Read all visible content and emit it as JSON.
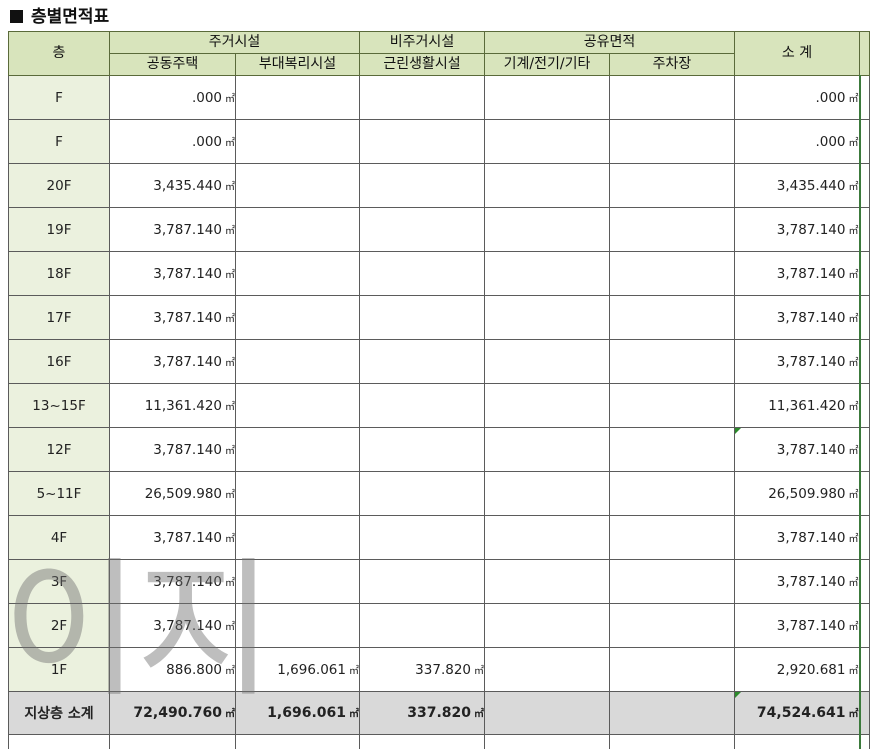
{
  "title": "층별면적표",
  "unit": "㎡",
  "header": {
    "floor": "층",
    "residential": "주거시설",
    "non_residential": "비주거시설",
    "shared": "공유면적",
    "subtotal": "소 계",
    "apartment": "공동주택",
    "auxiliary": "부대복리시설",
    "neighborhood": "근린생활시설",
    "mechanical": "기계/전기/기타",
    "parking": "주차장"
  },
  "rows": [
    {
      "floor": "F",
      "apt": ".000",
      "aux": "",
      "neigh": "",
      "mech": "",
      "park": "",
      "sub": ".000"
    },
    {
      "floor": "F",
      "apt": ".000",
      "aux": "",
      "neigh": "",
      "mech": "",
      "park": "",
      "sub": ".000"
    },
    {
      "floor": "20F",
      "apt": "3,435.440",
      "aux": "",
      "neigh": "",
      "mech": "",
      "park": "",
      "sub": "3,435.440"
    },
    {
      "floor": "19F",
      "apt": "3,787.140",
      "aux": "",
      "neigh": "",
      "mech": "",
      "park": "",
      "sub": "3,787.140"
    },
    {
      "floor": "18F",
      "apt": "3,787.140",
      "aux": "",
      "neigh": "",
      "mech": "",
      "park": "",
      "sub": "3,787.140"
    },
    {
      "floor": "17F",
      "apt": "3,787.140",
      "aux": "",
      "neigh": "",
      "mech": "",
      "park": "",
      "sub": "3,787.140"
    },
    {
      "floor": "16F",
      "apt": "3,787.140",
      "aux": "",
      "neigh": "",
      "mech": "",
      "park": "",
      "sub": "3,787.140"
    },
    {
      "floor": "13~15F",
      "apt": "11,361.420",
      "aux": "",
      "neigh": "",
      "mech": "",
      "park": "",
      "sub": "11,361.420"
    },
    {
      "floor": "12F",
      "apt": "3,787.140",
      "aux": "",
      "neigh": "",
      "mech": "",
      "park": "",
      "sub": "3,787.140"
    },
    {
      "floor": "5~11F",
      "apt": "26,509.980",
      "aux": "",
      "neigh": "",
      "mech": "",
      "park": "",
      "sub": "26,509.980"
    },
    {
      "floor": "4F",
      "apt": "3,787.140",
      "aux": "",
      "neigh": "",
      "mech": "",
      "park": "",
      "sub": "3,787.140"
    },
    {
      "floor": "3F",
      "apt": "3,787.140",
      "aux": "",
      "neigh": "",
      "mech": "",
      "park": "",
      "sub": "3,787.140"
    },
    {
      "floor": "2F",
      "apt": "3,787.140",
      "aux": "",
      "neigh": "",
      "mech": "",
      "park": "",
      "sub": "3,787.140"
    },
    {
      "floor": "1F",
      "apt": "886.800",
      "aux": "1,696.061",
      "neigh": "337.820",
      "mech": "",
      "park": "",
      "sub": "2,920.681"
    }
  ],
  "total": {
    "floor": "지상층 소계",
    "apt": "72,490.760",
    "aux": "1,696.061",
    "neigh": "337.820",
    "mech": "",
    "park": "",
    "sub": "74,524.641"
  },
  "watermark": "이지"
}
